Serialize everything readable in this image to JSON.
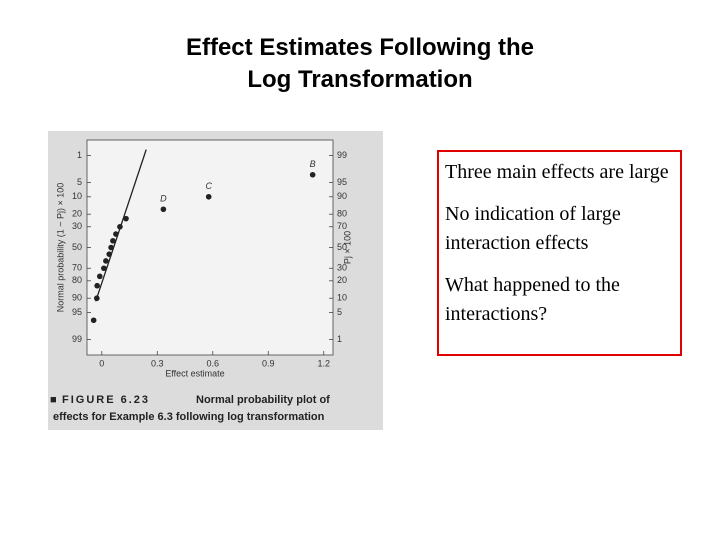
{
  "slide": {
    "title": [
      "Effect Estimates Following the",
      "Log Transformation"
    ],
    "bullets": [
      "Three main effects are large",
      "No indication of large interaction effects",
      "What happened to the interactions?"
    ]
  },
  "chart_data": {
    "type": "scatter",
    "figure_number": "FIGURE 6.23",
    "caption": [
      "Normal probability plot of",
      "effects for Example 6.3 following log transformation"
    ],
    "xlabel": "Effect estimate",
    "ylabel": "Normal probability (1 − Pj) × 100",
    "y2label": "Pj × 100",
    "xlim": [
      -0.08,
      1.25
    ],
    "xticks": [
      0,
      0.3,
      0.6,
      0.9,
      1.2
    ],
    "yscale": "normal-probability-reversed",
    "ylim": [
      99.67,
      0.33
    ],
    "yticks": [
      1,
      5,
      10,
      20,
      30,
      50,
      70,
      80,
      90,
      95,
      99
    ],
    "y2scale": "normal-probability",
    "y2lim": [
      0.33,
      99.67
    ],
    "y2ticks": [
      99,
      95,
      90,
      80,
      70,
      50,
      30,
      20,
      10,
      5,
      1
    ],
    "color": "#222222",
    "x": [
      -0.044,
      -0.027,
      -0.025,
      -0.011,
      0.011,
      0.022,
      0.04,
      0.05,
      0.06,
      0.076,
      0.098,
      0.131,
      0.333,
      0.578,
      1.14
    ],
    "values": [
      96.7,
      90,
      83.3,
      76.7,
      70,
      63.3,
      56.7,
      50,
      43.3,
      36.7,
      30,
      23.3,
      16.7,
      10,
      3.3
    ],
    "point_labels": [
      null,
      null,
      null,
      null,
      null,
      null,
      null,
      null,
      null,
      null,
      null,
      null,
      "D",
      "C",
      "B"
    ],
    "reference_line": {
      "x": [
        0.24,
        -0.033
      ],
      "values": [
        0.67,
        91.3
      ]
    }
  }
}
